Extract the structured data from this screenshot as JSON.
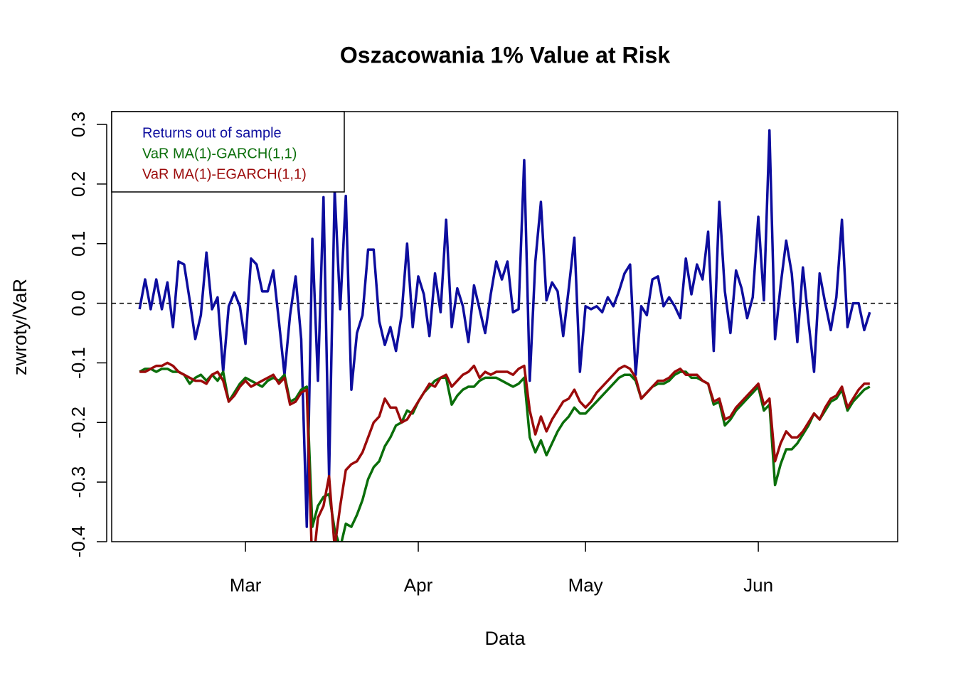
{
  "chart_data": {
    "type": "line",
    "title": "Oszacowania 1% Value at Risk",
    "xlabel": "Data",
    "ylabel": "zwroty/VaR",
    "x": [
      42,
      43,
      44,
      45,
      46,
      47,
      48,
      49,
      50,
      51,
      52,
      53,
      54,
      55,
      56,
      57,
      58,
      59,
      60,
      61,
      62,
      63,
      64,
      65,
      66,
      67,
      68,
      69,
      70,
      71,
      72,
      73,
      74,
      75,
      76,
      77,
      78,
      79,
      80,
      81,
      82,
      83,
      84,
      85,
      86,
      87,
      88,
      89,
      90,
      91,
      92,
      93,
      94,
      95,
      96,
      97,
      98,
      99,
      100,
      101,
      102,
      103,
      104,
      105,
      106,
      107,
      108,
      109,
      110,
      111,
      112,
      113,
      114,
      115,
      116,
      117,
      118,
      119,
      120,
      121,
      122,
      123,
      124,
      125,
      126,
      127,
      128,
      129,
      130,
      131,
      132,
      133,
      134,
      135,
      136,
      137,
      138,
      139,
      140,
      141,
      142,
      143,
      144,
      145,
      146,
      147,
      148,
      149,
      150,
      151,
      152,
      153,
      154,
      155,
      156,
      157,
      158,
      159,
      160,
      161,
      162,
      163,
      164,
      165,
      166,
      167,
      168,
      169,
      170,
      171,
      172,
      173
    ],
    "series": [
      {
        "name": "Returns out of sample",
        "color": "#0d0d9e",
        "values": [
          -0.01,
          0.04,
          -0.01,
          0.04,
          -0.01,
          0.035,
          -0.04,
          0.07,
          0.065,
          0.005,
          -0.06,
          -0.02,
          0.085,
          -0.01,
          0.01,
          -0.115,
          -0.005,
          0.018,
          -0.005,
          -0.068,
          0.075,
          0.065,
          0.02,
          0.02,
          0.055,
          -0.03,
          -0.12,
          -0.02,
          0.045,
          -0.06,
          -0.375,
          0.108,
          -0.13,
          0.178,
          -0.29,
          0.19,
          -0.01,
          0.18,
          -0.145,
          -0.05,
          -0.02,
          0.09,
          0.09,
          -0.03,
          -0.07,
          -0.04,
          -0.08,
          -0.02,
          0.1,
          -0.04,
          0.045,
          0.015,
          -0.055,
          0.05,
          -0.015,
          0.14,
          -0.04,
          0.025,
          -0.005,
          -0.065,
          0.03,
          -0.01,
          -0.05,
          0.015,
          0.07,
          0.04,
          0.07,
          -0.015,
          -0.01,
          0.24,
          -0.13,
          0.07,
          0.17,
          0.005,
          0.035,
          0.02,
          -0.055,
          0.025,
          0.11,
          -0.115,
          -0.005,
          -0.01,
          -0.005,
          -0.015,
          0.01,
          -0.005,
          0.02,
          0.05,
          0.065,
          -0.12,
          -0.005,
          -0.02,
          0.04,
          0.045,
          -0.005,
          0.01,
          -0.005,
          -0.025,
          0.075,
          0.015,
          0.065,
          0.04,
          0.12,
          -0.08,
          0.17,
          0.02,
          -0.05,
          0.055,
          0.025,
          -0.025,
          0.01,
          0.145,
          0.005,
          0.29,
          -0.06,
          0.03,
          0.105,
          0.05,
          -0.065,
          0.06,
          -0.03,
          -0.115,
          0.05,
          0.0,
          -0.045,
          0.01,
          0.14,
          -0.04,
          0.0,
          0.0,
          -0.045,
          -0.015
        ]
      },
      {
        "name": "VaR MA(1)-GARCH(1,1)",
        "color": "#0a6e0a",
        "values": [
          -0.115,
          -0.11,
          -0.11,
          -0.115,
          -0.11,
          -0.11,
          -0.115,
          -0.115,
          -0.12,
          -0.135,
          -0.125,
          -0.12,
          -0.13,
          -0.12,
          -0.13,
          -0.115,
          -0.165,
          -0.15,
          -0.135,
          -0.125,
          -0.13,
          -0.135,
          -0.14,
          -0.13,
          -0.125,
          -0.13,
          -0.12,
          -0.165,
          -0.16,
          -0.145,
          -0.14,
          -0.375,
          -0.34,
          -0.325,
          -0.32,
          -0.38,
          -0.41,
          -0.37,
          -0.375,
          -0.355,
          -0.33,
          -0.295,
          -0.275,
          -0.265,
          -0.24,
          -0.225,
          -0.205,
          -0.2,
          -0.18,
          -0.185,
          -0.165,
          -0.15,
          -0.14,
          -0.13,
          -0.125,
          -0.125,
          -0.17,
          -0.155,
          -0.145,
          -0.14,
          -0.14,
          -0.13,
          -0.125,
          -0.125,
          -0.125,
          -0.13,
          -0.135,
          -0.14,
          -0.135,
          -0.125,
          -0.225,
          -0.25,
          -0.23,
          -0.255,
          -0.235,
          -0.215,
          -0.2,
          -0.19,
          -0.175,
          -0.185,
          -0.185,
          -0.175,
          -0.165,
          -0.155,
          -0.145,
          -0.135,
          -0.125,
          -0.12,
          -0.12,
          -0.13,
          -0.16,
          -0.15,
          -0.14,
          -0.135,
          -0.135,
          -0.13,
          -0.12,
          -0.115,
          -0.115,
          -0.125,
          -0.125,
          -0.13,
          -0.135,
          -0.17,
          -0.165,
          -0.205,
          -0.195,
          -0.18,
          -0.17,
          -0.16,
          -0.15,
          -0.14,
          -0.18,
          -0.17,
          -0.305,
          -0.27,
          -0.245,
          -0.245,
          -0.235,
          -0.22,
          -0.205,
          -0.185,
          -0.195,
          -0.18,
          -0.165,
          -0.16,
          -0.145,
          -0.18,
          -0.165,
          -0.155,
          -0.145,
          -0.14
        ]
      },
      {
        "name": "VaR MA(1)-EGARCH(1,1)",
        "color": "#9b0a0a",
        "values": [
          -0.115,
          -0.115,
          -0.11,
          -0.105,
          -0.105,
          -0.1,
          -0.105,
          -0.115,
          -0.12,
          -0.125,
          -0.13,
          -0.13,
          -0.135,
          -0.12,
          -0.115,
          -0.13,
          -0.165,
          -0.155,
          -0.14,
          -0.13,
          -0.14,
          -0.135,
          -0.13,
          -0.125,
          -0.12,
          -0.135,
          -0.125,
          -0.17,
          -0.165,
          -0.15,
          -0.145,
          -0.45,
          -0.36,
          -0.34,
          -0.29,
          -0.41,
          -0.34,
          -0.28,
          -0.27,
          -0.265,
          -0.25,
          -0.225,
          -0.2,
          -0.19,
          -0.16,
          -0.175,
          -0.175,
          -0.2,
          -0.195,
          -0.18,
          -0.165,
          -0.15,
          -0.135,
          -0.14,
          -0.125,
          -0.12,
          -0.14,
          -0.13,
          -0.12,
          -0.115,
          -0.105,
          -0.125,
          -0.115,
          -0.12,
          -0.115,
          -0.115,
          -0.115,
          -0.12,
          -0.11,
          -0.105,
          -0.18,
          -0.22,
          -0.19,
          -0.215,
          -0.195,
          -0.18,
          -0.165,
          -0.16,
          -0.145,
          -0.165,
          -0.175,
          -0.165,
          -0.15,
          -0.14,
          -0.13,
          -0.12,
          -0.11,
          -0.105,
          -0.11,
          -0.125,
          -0.16,
          -0.15,
          -0.14,
          -0.13,
          -0.13,
          -0.125,
          -0.115,
          -0.11,
          -0.12,
          -0.12,
          -0.12,
          -0.13,
          -0.135,
          -0.165,
          -0.16,
          -0.195,
          -0.19,
          -0.175,
          -0.165,
          -0.155,
          -0.145,
          -0.135,
          -0.17,
          -0.16,
          -0.265,
          -0.235,
          -0.215,
          -0.225,
          -0.225,
          -0.215,
          -0.2,
          -0.185,
          -0.195,
          -0.175,
          -0.16,
          -0.155,
          -0.14,
          -0.175,
          -0.16,
          -0.145,
          -0.135,
          -0.135
        ]
      }
    ],
    "xlim": [
      37,
      178
    ],
    "xticks": [
      {
        "value": 61,
        "label": "Mar"
      },
      {
        "value": 92,
        "label": "Apr"
      },
      {
        "value": 122,
        "label": "May"
      },
      {
        "value": 153,
        "label": "Jun"
      }
    ],
    "ylim": [
      -0.4,
      0.3215
    ],
    "yticks": [
      -0.4,
      -0.3,
      -0.2,
      -0.1,
      {
        "value": 0,
        "label": "0.0"
      },
      0.1,
      0.2,
      0.3
    ],
    "reference_line": 0,
    "legend": "top-left",
    "grid": false
  }
}
